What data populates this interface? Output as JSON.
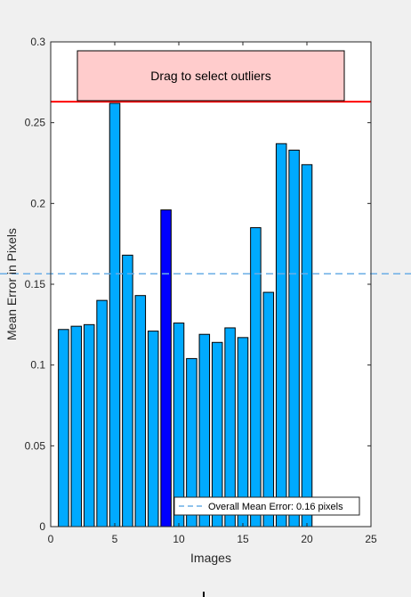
{
  "chart_data": {
    "type": "bar",
    "xlabel": "Images",
    "ylabel": "Mean Error in Pixels",
    "xlim": [
      0,
      25
    ],
    "ylim": [
      0,
      0.3
    ],
    "xticks": [
      0,
      5,
      10,
      15,
      20,
      25
    ],
    "yticks": [
      0,
      0.05,
      0.1,
      0.15,
      0.2,
      0.25,
      0.3
    ],
    "ytick_labels": [
      "0",
      "0.05",
      "0.1",
      "0.15",
      "0.2",
      "0.25",
      "0.3"
    ],
    "x": [
      1,
      2,
      3,
      4,
      5,
      6,
      7,
      8,
      9,
      10,
      11,
      12,
      13,
      14,
      15,
      16,
      17,
      18,
      19,
      20
    ],
    "values": [
      0.122,
      0.124,
      0.125,
      0.14,
      0.262,
      0.168,
      0.143,
      0.121,
      0.196,
      0.126,
      0.104,
      0.119,
      0.114,
      0.123,
      0.117,
      0.185,
      0.145,
      0.237,
      0.233,
      0.224
    ],
    "selected_index": 9,
    "overall_mean_error": 0.1565,
    "threshold": 0.263,
    "legend": {
      "entry": "Overall Mean Error: 0.16 pixels",
      "placement": "bottom-right"
    },
    "drag_box_label": "Drag to select outliers",
    "colors": {
      "bar": "#00aaff",
      "selected_bar": "#0000ff",
      "mean_line": "#6aaee6",
      "threshold_line": "#ff0000",
      "drag_box_fill": "#ffcccc"
    }
  }
}
